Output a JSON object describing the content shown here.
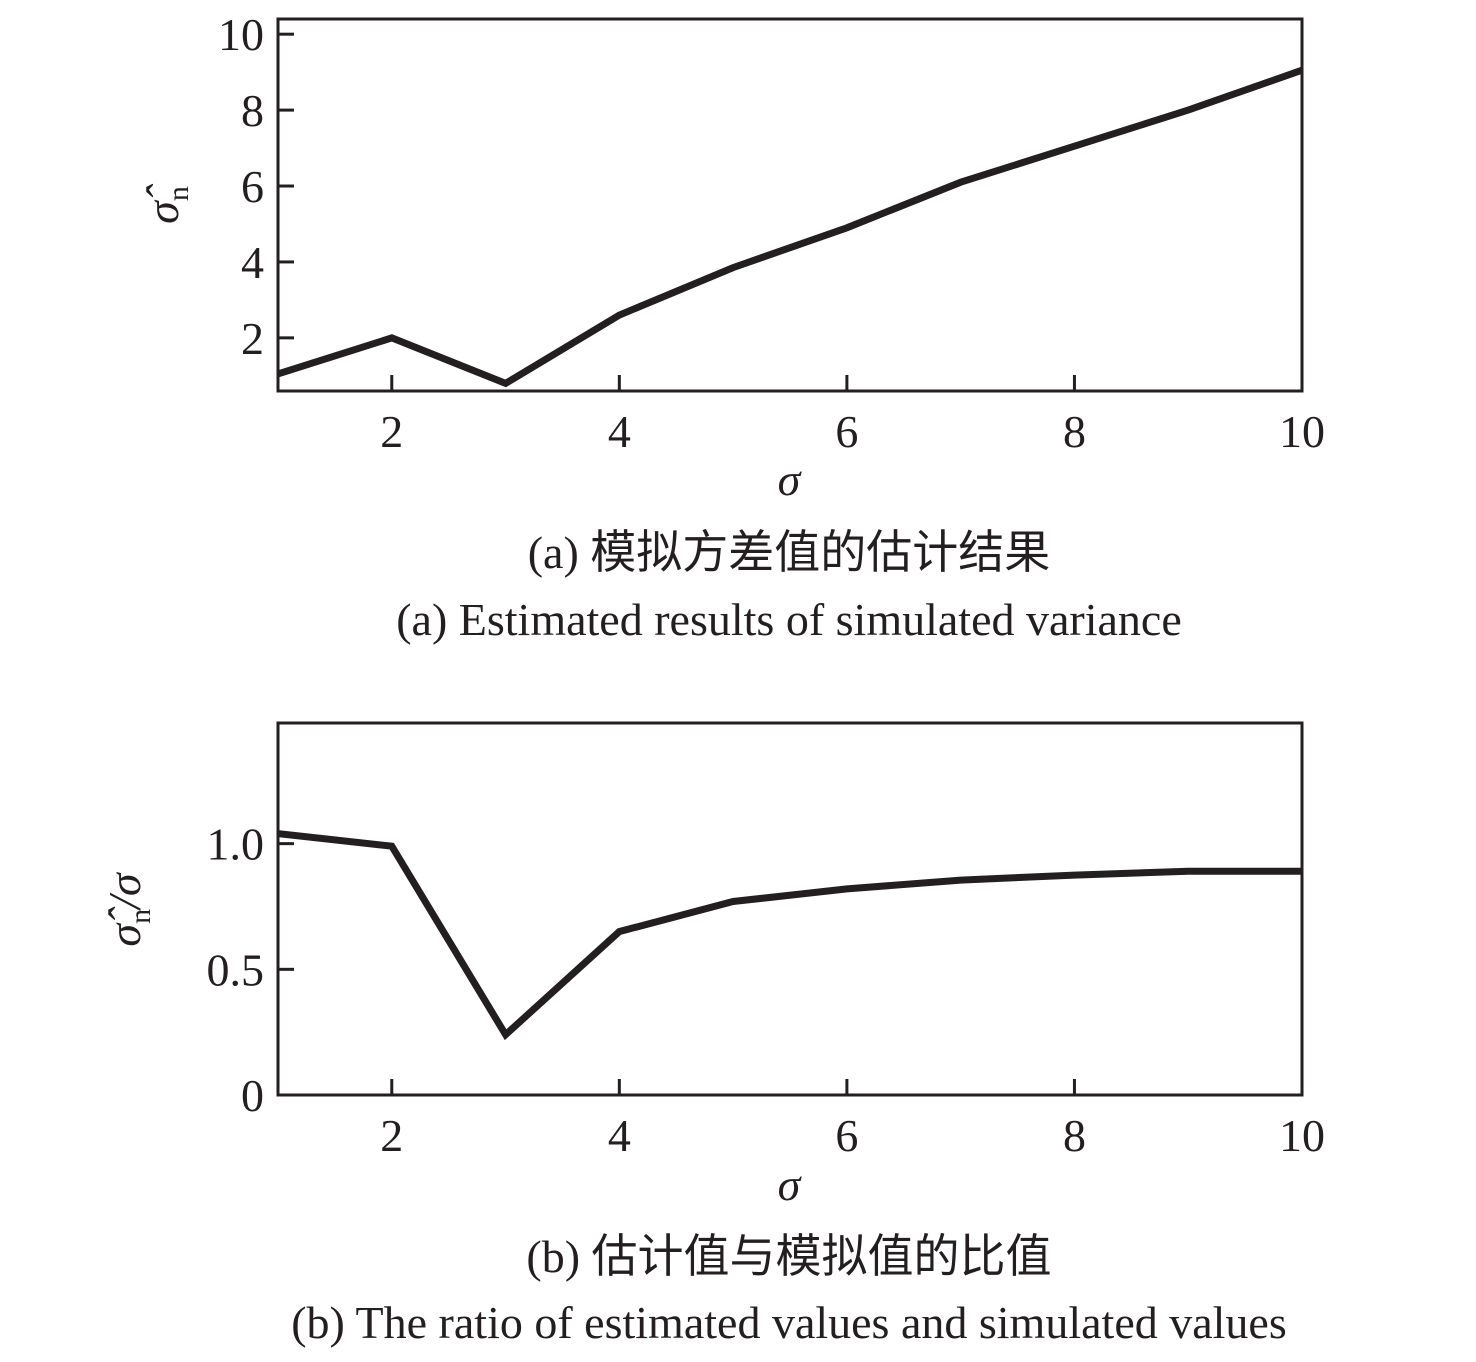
{
  "chart_data": [
    {
      "type": "line",
      "title": "",
      "caption_cn": "(a) 模拟方差值的估计结果",
      "caption_en": "(a) Estimated results of simulated variance",
      "xlabel": "σ",
      "ylabel": "σ̂",
      "ylabel_sub": "n",
      "ylabel_suffix": "",
      "xlim": [
        1,
        10
      ],
      "ylim": [
        0.6,
        10.4
      ],
      "xticks": [
        2,
        4,
        6,
        8,
        10
      ],
      "xtick_labels": [
        "2",
        "4",
        "6",
        "8",
        "10"
      ],
      "yticks": [
        2,
        4,
        6,
        8,
        10
      ],
      "ytick_labels": [
        "2",
        "4",
        "6",
        "8",
        "10"
      ],
      "grid": false,
      "series": [
        {
          "color": "#231f20",
          "x": [
            1,
            2,
            3,
            4,
            5,
            6,
            7,
            8,
            9,
            10
          ],
          "y": [
            1.05,
            2.0,
            0.8,
            2.6,
            3.85,
            4.9,
            6.1,
            7.05,
            8.0,
            9.05
          ]
        }
      ]
    },
    {
      "type": "line",
      "title": "",
      "caption_cn": "(b) 估计值与模拟值的比值",
      "caption_en": "(b) The ratio of estimated values and simulated values",
      "xlabel": "σ",
      "ylabel": "σ̂",
      "ylabel_sub": "n",
      "ylabel_suffix": "/σ",
      "xlim": [
        1,
        10
      ],
      "ylim": [
        0,
        1.48
      ],
      "xticks": [
        2,
        4,
        6,
        8,
        10
      ],
      "xtick_labels": [
        "2",
        "4",
        "6",
        "8",
        "10"
      ],
      "yticks": [
        0,
        0.5,
        1.0
      ],
      "ytick_labels": [
        "0",
        "0.5",
        "1.0"
      ],
      "grid": false,
      "series": [
        {
          "color": "#231f20",
          "x": [
            1,
            2,
            3,
            4,
            5,
            6,
            7,
            8,
            9,
            10
          ],
          "y": [
            1.04,
            0.99,
            0.24,
            0.65,
            0.77,
            0.82,
            0.855,
            0.875,
            0.89,
            0.89
          ]
        }
      ]
    }
  ]
}
